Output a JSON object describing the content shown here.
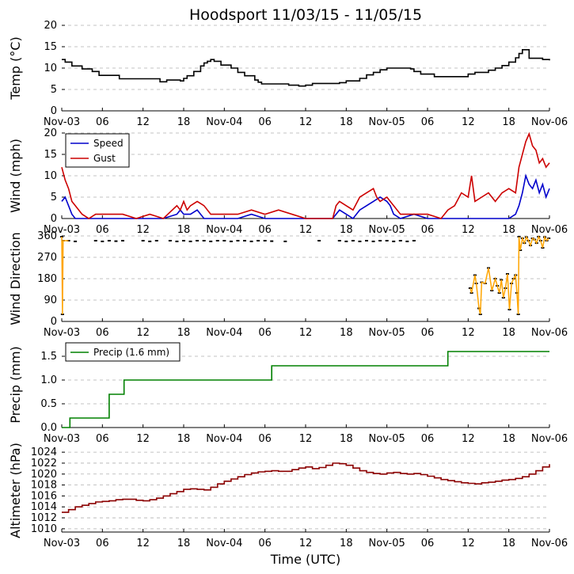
{
  "title": "Hoodsport 11/03/15 - 11/05/15",
  "xlabel": "Time (UTC)",
  "x_tick_labels": [
    "Nov-03",
    "06",
    "12",
    "18",
    "Nov-04",
    "06",
    "12",
    "18",
    "Nov-05",
    "06",
    "12",
    "18",
    "Nov-06"
  ],
  "x_range_hours": [
    0,
    72
  ],
  "chart_data": [
    {
      "type": "line",
      "ylabel": "Temp (°C)",
      "ylim": [
        0,
        20
      ],
      "yticks": [
        "0",
        "5",
        "10",
        "15",
        "20"
      ],
      "grid": true,
      "series": [
        {
          "color": "#000000",
          "step": true,
          "x": [
            0,
            0.5,
            1.5,
            3,
            4.5,
            5.5,
            8.5,
            14.5,
            15.5,
            17.5,
            18,
            18.5,
            19.5,
            20.5,
            21,
            21.5,
            22,
            22.5,
            23.5,
            25,
            26,
            27,
            28.5,
            29,
            29.5,
            33.5,
            35,
            36,
            37,
            41,
            42,
            44,
            45,
            46,
            47,
            48,
            51.5,
            52,
            53,
            55,
            60,
            61,
            63,
            64,
            65,
            66,
            67,
            67.5,
            68,
            69,
            71,
            72
          ],
          "y": [
            12,
            11.4,
            10.5,
            9.8,
            9.2,
            8.3,
            7.5,
            6.8,
            7.2,
            7.0,
            7.6,
            8.2,
            9.2,
            10.5,
            11.2,
            11.6,
            12.0,
            11.6,
            10.7,
            10.0,
            9.0,
            8.2,
            7.2,
            6.7,
            6.3,
            6.0,
            5.8,
            6.0,
            6.4,
            6.6,
            7.0,
            7.6,
            8.4,
            9.0,
            9.6,
            10.0,
            9.8,
            9.2,
            8.6,
            8.0,
            8.6,
            9.0,
            9.5,
            10.0,
            10.6,
            11.4,
            12.4,
            13.4,
            14.3,
            12.3,
            12.0,
            11.8
          ]
        }
      ]
    },
    {
      "type": "line",
      "ylabel": "Wind (mph)",
      "ylim": [
        0,
        20
      ],
      "yticks": [
        "0",
        "5",
        "10",
        "15",
        "20"
      ],
      "grid": true,
      "legend": {
        "position": "top-left",
        "entries": [
          "Speed",
          "Gust"
        ]
      },
      "series": [
        {
          "name": "Speed",
          "color": "#0000cc",
          "x": [
            0,
            0.5,
            1,
            1.5,
            2,
            3,
            6,
            9,
            12,
            15,
            17,
            17.5,
            18,
            19,
            20,
            20.5,
            21,
            22,
            24,
            26,
            28,
            30,
            36,
            40,
            40.5,
            41,
            42,
            43,
            44,
            45,
            46,
            47,
            48,
            48.5,
            49,
            50,
            52,
            54,
            56,
            58,
            60,
            62,
            64,
            66,
            67,
            67.5,
            68,
            68.5,
            69,
            69.5,
            70,
            70.5,
            71,
            71.5,
            72
          ],
          "y": [
            4,
            5,
            3,
            1,
            0,
            0,
            0,
            0,
            0,
            0,
            1,
            2,
            1,
            1,
            2,
            1,
            0,
            0,
            0,
            0,
            1,
            0,
            0,
            0,
            1,
            2,
            1,
            0,
            2,
            3,
            4,
            5,
            4,
            3,
            1,
            0,
            1,
            0,
            0,
            0,
            0,
            0,
            0,
            0,
            1,
            3,
            6,
            10,
            8,
            7,
            9,
            6,
            8,
            5,
            7
          ]
        },
        {
          "name": "Gust",
          "color": "#cc0000",
          "x": [
            0,
            0.5,
            1,
            1.5,
            2,
            3,
            4,
            5,
            7,
            9,
            11,
            13,
            15,
            17,
            17.5,
            18,
            18.5,
            19,
            20,
            21,
            22,
            24,
            26,
            28,
            30,
            32,
            36,
            40,
            40.5,
            41,
            42,
            43,
            44,
            45,
            46,
            46.5,
            47,
            48,
            48.5,
            49,
            50,
            52,
            54,
            56,
            57,
            58,
            59,
            60,
            60.5,
            61,
            62,
            63,
            64,
            65,
            66,
            67,
            67.5,
            68,
            68.5,
            69,
            69.5,
            70,
            70.5,
            71,
            71.5,
            72
          ],
          "y": [
            12,
            9,
            7,
            4,
            3,
            1,
            0,
            1,
            1,
            1,
            0,
            1,
            0,
            3,
            2,
            4,
            2,
            3,
            4,
            3,
            1,
            1,
            1,
            2,
            1,
            2,
            0,
            0,
            3,
            4,
            3,
            2,
            5,
            6,
            7,
            5,
            4,
            5,
            4,
            3,
            1,
            1,
            1,
            0,
            2,
            3,
            6,
            5,
            10,
            4,
            5,
            6,
            4,
            6,
            7,
            6,
            12,
            15,
            18,
            20,
            17,
            16,
            13,
            14,
            12,
            13
          ]
        }
      ]
    },
    {
      "type": "scatter",
      "ylabel": "Wind Direction",
      "ylim": [
        0,
        360
      ],
      "yticks": [
        "0",
        "90",
        "180",
        "270",
        "360"
      ],
      "grid": true,
      "series": [
        {
          "color": "#ffa500",
          "marker_edge": "#000000",
          "x": [
            0,
            0.1,
            0.2,
            1,
            2,
            5,
            6,
            7,
            8,
            9,
            12,
            13,
            14,
            16,
            17,
            18,
            19,
            20,
            21,
            22,
            23,
            24,
            25,
            26,
            27,
            28,
            29,
            30,
            31,
            33,
            38,
            41,
            42,
            43,
            44,
            45,
            46,
            47,
            48,
            49,
            50,
            51,
            52,
            60.3,
            60.5,
            61.0,
            61.2,
            61.6,
            61.8,
            62.0,
            62.5,
            63.0,
            63.5,
            64.0,
            64.3,
            64.6,
            64.9,
            65.2,
            65.5,
            65.8,
            66.1,
            66.4,
            66.7,
            67.0,
            67.2,
            67.4,
            67.5,
            67.7,
            68.0,
            68.3,
            68.6,
            68.9,
            69.2,
            69.5,
            69.8,
            70.1,
            70.4,
            70.7,
            71.0,
            71.3,
            71.6,
            71.9
          ],
          "y": [
            360,
            30,
            340,
            340,
            337,
            340,
            337,
            340,
            338,
            340,
            340,
            337,
            340,
            340,
            337,
            340,
            337,
            340,
            340,
            337,
            340,
            340,
            337,
            340,
            340,
            337,
            340,
            340,
            338,
            337,
            340,
            340,
            337,
            340,
            337,
            340,
            337,
            340,
            340,
            337,
            340,
            337,
            340,
            140,
            120,
            195,
            160,
            55,
            30,
            165,
            160,
            225,
            130,
            180,
            150,
            120,
            175,
            100,
            140,
            200,
            50,
            160,
            180,
            195,
            120,
            30,
            360,
            300,
            350,
            330,
            355,
            340,
            320,
            350,
            345,
            330,
            360,
            340,
            310,
            355,
            340,
            350
          ]
        }
      ]
    },
    {
      "type": "line",
      "ylabel": "Precip (mm)",
      "ylim": [
        0,
        1.8
      ],
      "yticks": [
        "0.0",
        "0.5",
        "1.0",
        "1.5"
      ],
      "grid": true,
      "legend": {
        "position": "top-left",
        "entries": [
          "Precip (1.6 mm)"
        ]
      },
      "series": [
        {
          "name": "Precip (1.6 mm)",
          "color": "#008000",
          "step": true,
          "x": [
            0,
            1.2,
            7,
            9.2,
            31,
            57,
            72
          ],
          "y": [
            0,
            0.2,
            0.7,
            1.0,
            1.3,
            1.6,
            1.6
          ]
        }
      ]
    },
    {
      "type": "line",
      "ylabel": "Altimeter (hPa)",
      "ylim": [
        1009.4,
        1024.6
      ],
      "yticks": [
        "1010",
        "1012",
        "1014",
        "1016",
        "1018",
        "1020",
        "1022",
        "1024"
      ],
      "grid": true,
      "series": [
        {
          "color": "#8b0000",
          "step": true,
          "x": [
            0,
            1,
            2,
            3,
            4,
            5,
            6,
            7,
            8,
            9,
            10,
            11,
            12,
            13,
            14,
            15,
            16,
            17,
            18,
            19,
            20,
            21,
            22,
            23,
            24,
            25,
            26,
            27,
            28,
            29,
            30,
            31,
            32,
            33,
            34,
            35,
            36,
            37,
            38,
            39,
            40,
            41,
            42,
            43,
            44,
            45,
            46,
            47,
            48,
            49,
            50,
            51,
            52,
            53,
            54,
            55,
            56,
            57,
            58,
            59,
            60,
            61,
            62,
            63,
            64,
            65,
            66,
            67,
            68,
            69,
            70,
            71,
            72
          ],
          "y": [
            1013.0,
            1013.5,
            1014.0,
            1014.3,
            1014.6,
            1014.9,
            1015.0,
            1015.1,
            1015.3,
            1015.4,
            1015.4,
            1015.2,
            1015.1,
            1015.3,
            1015.6,
            1016.0,
            1016.4,
            1016.8,
            1017.2,
            1017.3,
            1017.2,
            1017.1,
            1017.6,
            1018.2,
            1018.7,
            1019.1,
            1019.5,
            1019.9,
            1020.2,
            1020.4,
            1020.5,
            1020.6,
            1020.5,
            1020.5,
            1020.8,
            1021.1,
            1021.3,
            1021.0,
            1021.2,
            1021.6,
            1022.0,
            1021.9,
            1021.6,
            1021.1,
            1020.6,
            1020.3,
            1020.1,
            1020.0,
            1020.2,
            1020.3,
            1020.1,
            1020.0,
            1020.1,
            1019.9,
            1019.6,
            1019.3,
            1019.0,
            1018.8,
            1018.6,
            1018.4,
            1018.3,
            1018.2,
            1018.4,
            1018.5,
            1018.7,
            1018.9,
            1019.0,
            1019.2,
            1019.5,
            1020.0,
            1020.6,
            1021.3,
            1021.8
          ]
        }
      ]
    }
  ]
}
